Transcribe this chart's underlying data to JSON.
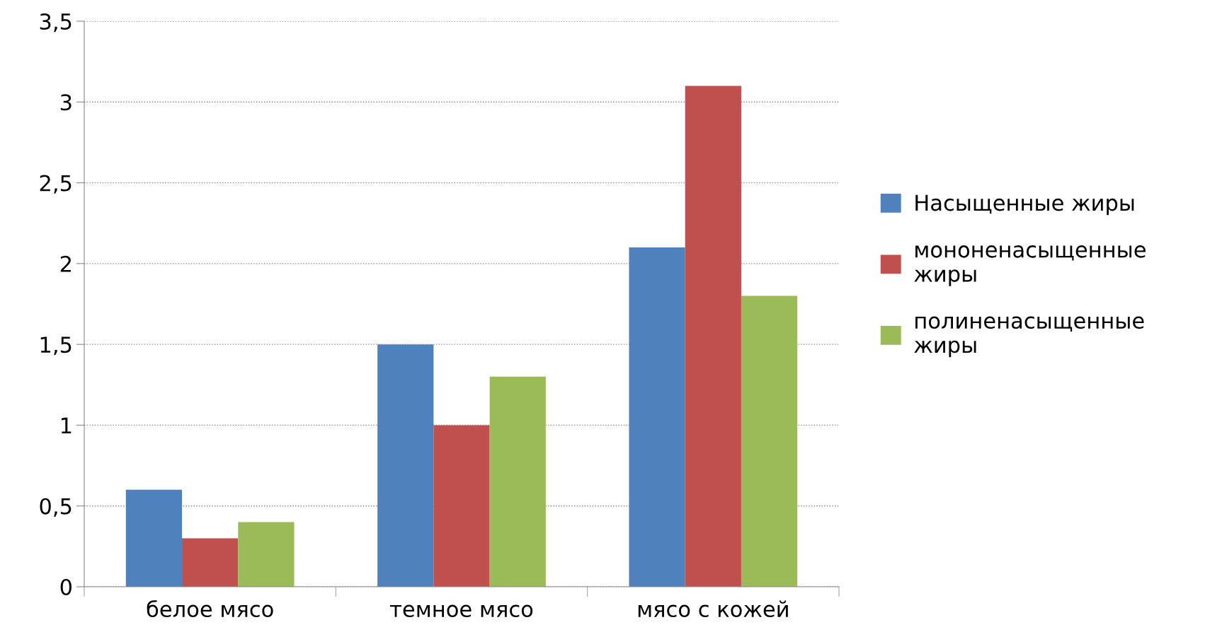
{
  "chart_data": {
    "type": "bar",
    "categories": [
      "белое мясо",
      "темное мясо",
      "мясо с кожей"
    ],
    "series": [
      {
        "name": "Насыщенные жиры",
        "color": "#4f81bd",
        "values": [
          0.6,
          1.5,
          2.1
        ]
      },
      {
        "name": "мононенасыщенные жиры",
        "color": "#c0504d",
        "values": [
          0.3,
          1.0,
          3.1
        ]
      },
      {
        "name": "полиненасыщенные жиры",
        "color": "#9bbb59",
        "values": [
          0.4,
          1.3,
          1.8
        ]
      }
    ],
    "ylim": [
      0,
      3.5
    ],
    "yticks": [
      0,
      {
        "value": 0.5,
        "label": "0,5"
      },
      1,
      {
        "value": 1.5,
        "label": "1,5"
      },
      2,
      {
        "value": 2.5,
        "label": "2,5"
      },
      3,
      {
        "value": 3.5,
        "label": "3,5"
      }
    ],
    "grid": "y",
    "legend": "right"
  }
}
